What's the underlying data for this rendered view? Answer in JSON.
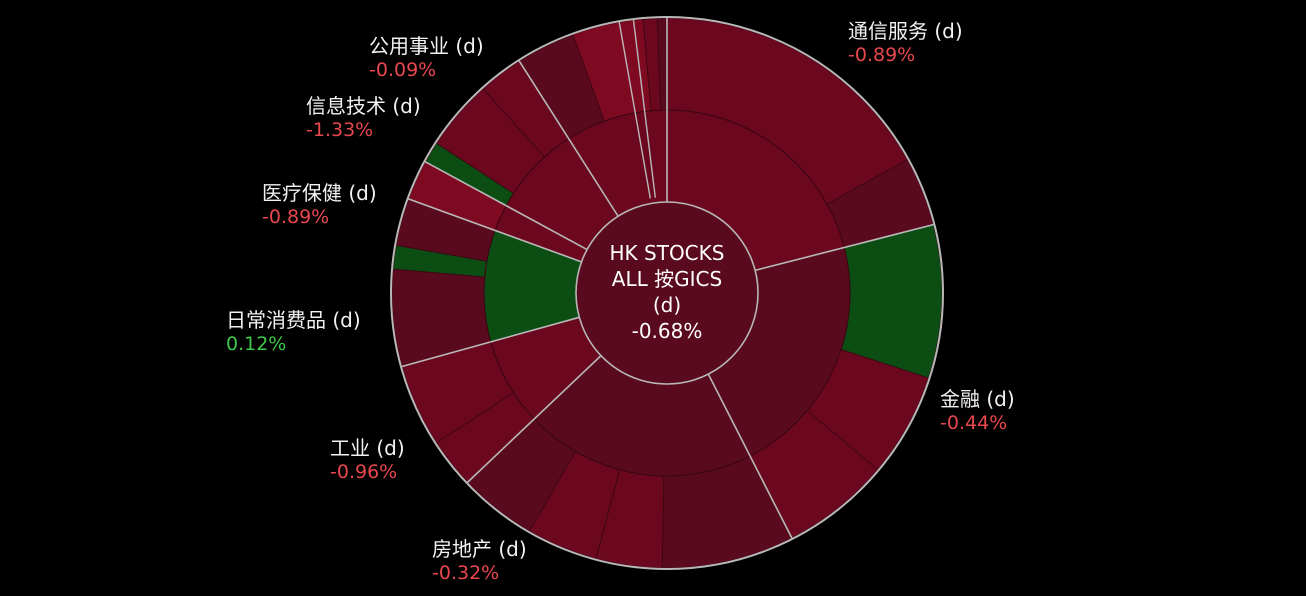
{
  "chart_data": {
    "type": "sunburst",
    "center": {
      "lines": [
        "HK STOCKS",
        "ALL 按GICS",
        "(d)",
        "-0.68%"
      ],
      "value": -0.68
    },
    "sectors": [
      {
        "name": "通信服务 (d)",
        "value": -0.89,
        "value_label": "-0.89%"
      },
      {
        "name": "金融 (d)",
        "value": -0.44,
        "value_label": "-0.44%"
      },
      {
        "name": "房地产 (d)",
        "value": -0.32,
        "value_label": "-0.32%"
      },
      {
        "name": "工业 (d)",
        "value": -0.96,
        "value_label": "-0.96%"
      },
      {
        "name": "日常消费品 (d)",
        "value": 0.12,
        "value_label": "0.12%"
      },
      {
        "name": "医疗保健 (d)",
        "value": -0.89,
        "value_label": "-0.89%"
      },
      {
        "name": "信息技术 (d)",
        "value": -1.33,
        "value_label": "-1.33%"
      },
      {
        "name": "公用事业 (d)",
        "value": -0.09,
        "value_label": "-0.09%"
      }
    ],
    "colors": {
      "negative_dark": "#5a0a1e",
      "negative": "#6b0820",
      "negative_bright": "#7e0a22",
      "positive": "#0b4d12",
      "positive_label": "#3ec84a",
      "negative_label": "#e8474f",
      "boundary": "#b8b8b8"
    }
  }
}
